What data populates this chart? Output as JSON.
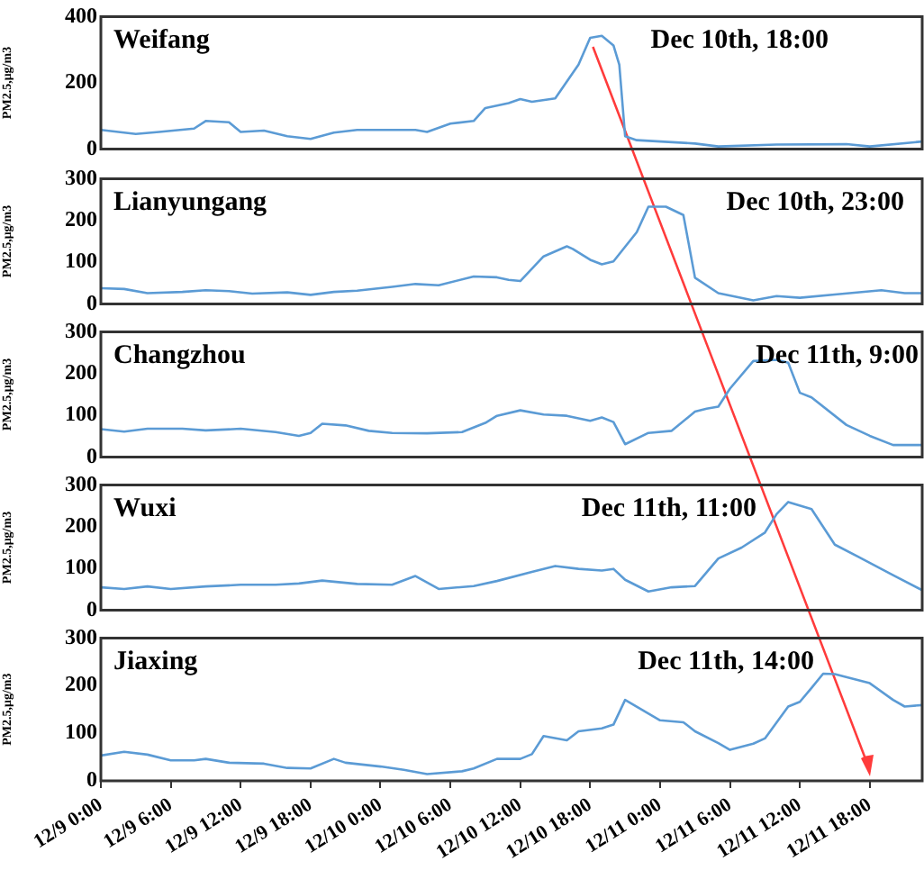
{
  "chart_data": [
    {
      "type": "line",
      "title": "Weifang",
      "ylabel": "PM2.5,μg/m3",
      "annotations": [
        "Dec 10th, 18:00"
      ],
      "tick_labels": "y",
      "marker": "none",
      "xlim": [
        "--12-09T00:00",
        "--12-11T22:30"
      ],
      "ylim": [
        0,
        400
      ],
      "yticks": [
        0,
        200,
        400
      ],
      "series": [
        {
          "color": "#5b9bd5",
          "x": [
            "--12-09T00:00",
            "--12-09T03:00",
            "--12-09T05:00",
            "--12-09T08:00",
            "--12-09T09:00",
            "--12-09T11:00",
            "--12-09T12:00",
            "--12-09T14:00",
            "--12-09T16:00",
            "--12-09T18:00",
            "--12-09T20:00",
            "--12-09T22:00",
            "--12-10T03:00",
            "--12-10T04:00",
            "--12-10T06:00",
            "--12-10T08:00",
            "--12-10T09:00",
            "--12-10T11:00",
            "--12-10T12:00",
            "--12-10T13:00",
            "--12-10T15:00",
            "--12-10T17:00",
            "--12-10T18:00",
            "--12-10T19:00",
            "--12-10T20:00",
            "--12-10T20:30",
            "--12-10T21:00",
            "--12-10T22:00",
            "--12-11T03:00",
            "--12-11T05:00",
            "--12-11T10:00",
            "--12-11T16:00",
            "--12-11T18:00",
            "--12-11T22:30"
          ],
          "values": [
            58,
            46,
            52,
            62,
            85,
            81,
            52,
            56,
            39,
            31,
            50,
            58,
            58,
            52,
            77,
            85,
            124,
            139,
            151,
            143,
            153,
            255,
            336,
            342,
            313,
            255,
            39,
            27,
            17,
            8,
            14,
            15,
            8,
            23
          ]
        }
      ]
    },
    {
      "type": "line",
      "title": "Lianyungang",
      "ylabel": "PM2.5,μg/m3",
      "annotations": [
        "Dec 10th, 23:00"
      ],
      "tick_labels": "y",
      "marker": "none",
      "xlim": [
        "--12-09T00:00",
        "--12-11T22:30"
      ],
      "ylim": [
        0,
        300
      ],
      "yticks": [
        0,
        100,
        200,
        300
      ],
      "series": [
        {
          "color": "#5b9bd5",
          "x": [
            "--12-09T00:00",
            "--12-09T02:00",
            "--12-09T04:00",
            "--12-09T07:00",
            "--12-09T09:00",
            "--12-09T11:00",
            "--12-09T13:00",
            "--12-09T16:00",
            "--12-09T18:00",
            "--12-09T20:00",
            "--12-09T22:00",
            "--12-10T01:00",
            "--12-10T03:00",
            "--12-10T05:00",
            "--12-10T08:00",
            "--12-10T10:00",
            "--12-10T11:00",
            "--12-10T12:00",
            "--12-10T14:00",
            "--12-10T16:00",
            "--12-10T16:30",
            "--12-10T18:00",
            "--12-10T19:00",
            "--12-10T20:00",
            "--12-10T22:00",
            "--12-10T23:00",
            "--12-11T00:30",
            "--12-11T02:00",
            "--12-11T03:00",
            "--12-11T05:00",
            "--12-11T08:00",
            "--12-11T10:00",
            "--12-11T12:00",
            "--12-11T15:00",
            "--12-11T19:00",
            "--12-11T21:00",
            "--12-11T22:30"
          ],
          "values": [
            38,
            36,
            26,
            29,
            33,
            31,
            25,
            28,
            22,
            29,
            32,
            41,
            48,
            45,
            66,
            64,
            58,
            55,
            114,
            138,
            132,
            106,
            95,
            102,
            172,
            233,
            233,
            213,
            63,
            26,
            9,
            19,
            15,
            23,
            33,
            26,
            26
          ]
        }
      ]
    },
    {
      "type": "line",
      "title": "Changzhou",
      "ylabel": "PM2.5,μg/m3",
      "annotations": [
        "Dec 11th, 9:00"
      ],
      "tick_labels": "y",
      "marker": "none",
      "xlim": [
        "--12-09T00:00",
        "--12-11T22:30"
      ],
      "ylim": [
        0,
        300
      ],
      "yticks": [
        0,
        100,
        200,
        300
      ],
      "series": [
        {
          "color": "#5b9bd5",
          "x": [
            "--12-09T00:00",
            "--12-09T02:00",
            "--12-09T04:00",
            "--12-09T07:00",
            "--12-09T09:00",
            "--12-09T12:00",
            "--12-09T15:00",
            "--12-09T17:00",
            "--12-09T18:00",
            "--12-09T19:00",
            "--12-09T21:00",
            "--12-09T23:00",
            "--12-10T01:00",
            "--12-10T04:00",
            "--12-10T07:00",
            "--12-10T09:00",
            "--12-10T10:00",
            "--12-10T12:00",
            "--12-10T14:00",
            "--12-10T16:00",
            "--12-10T18:00",
            "--12-10T19:00",
            "--12-10T20:00",
            "--12-10T21:00",
            "--12-10T23:00",
            "--12-11T01:00",
            "--12-11T03:00",
            "--12-11T04:00",
            "--12-11T05:00",
            "--12-11T06:00",
            "--12-11T08:00",
            "--12-11T10:00",
            "--12-11T11:00",
            "--12-11T12:00",
            "--12-11T13:00",
            "--12-11T16:00",
            "--12-11T18:00",
            "--12-11T20:00",
            "--12-11T22:30"
          ],
          "values": [
            67,
            61,
            68,
            68,
            64,
            68,
            60,
            51,
            58,
            80,
            76,
            63,
            58,
            57,
            60,
            82,
            99,
            112,
            102,
            99,
            87,
            95,
            84,
            31,
            58,
            63,
            109,
            116,
            121,
            164,
            230,
            233,
            226,
            154,
            143,
            77,
            51,
            29,
            29
          ]
        }
      ]
    },
    {
      "type": "line",
      "title": "Wuxi",
      "ylabel": "PM2.5,μg/m3",
      "annotations": [
        "Dec 11th, 11:00"
      ],
      "tick_labels": "y",
      "marker": "none",
      "xlim": [
        "--12-09T00:00",
        "--12-11T22:30"
      ],
      "ylim": [
        0,
        300
      ],
      "yticks": [
        0,
        100,
        200,
        300
      ],
      "series": [
        {
          "color": "#5b9bd5",
          "x": [
            "--12-09T00:00",
            "--12-09T02:00",
            "--12-09T04:00",
            "--12-09T06:00",
            "--12-09T09:00",
            "--12-09T12:00",
            "--12-09T15:00",
            "--12-09T17:00",
            "--12-09T19:00",
            "--12-09T22:00",
            "--12-10T01:00",
            "--12-10T03:00",
            "--12-10T05:00",
            "--12-10T08:00",
            "--12-10T10:00",
            "--12-10T13:00",
            "--12-10T15:00",
            "--12-10T17:00",
            "--12-10T19:00",
            "--12-10T20:00",
            "--12-10T21:00",
            "--12-10T23:00",
            "--12-11T01:00",
            "--12-11T03:00",
            "--12-11T05:00",
            "--12-11T07:00",
            "--12-11T09:00",
            "--12-11T10:00",
            "--12-11T11:00",
            "--12-11T13:00",
            "--12-11T15:00",
            "--12-11T17:00",
            "--12-11T20:00",
            "--12-11T22:30"
          ],
          "values": [
            55,
            51,
            57,
            51,
            57,
            61,
            61,
            64,
            71,
            63,
            61,
            82,
            51,
            58,
            70,
            92,
            106,
            99,
            95,
            99,
            73,
            45,
            55,
            58,
            124,
            150,
            186,
            230,
            259,
            242,
            157,
            128,
            84,
            48
          ]
        }
      ]
    },
    {
      "type": "line",
      "title": "Jiaxing",
      "ylabel": "PM2.5,μg/m3",
      "annotations": [
        "Dec 11th, 14:00"
      ],
      "marker": "none",
      "xlim": [
        "--12-09T00:00",
        "--12-11T22:30"
      ],
      "xticks": [
        {
          "value": "--12-09T00:00",
          "label": "12/9 0:00"
        },
        {
          "value": "--12-09T06:00",
          "label": "12/9 6:00"
        },
        {
          "value": "--12-09T12:00",
          "label": "12/9 12:00"
        },
        {
          "value": "--12-09T18:00",
          "label": "12/9 18:00"
        },
        {
          "value": "--12-10T00:00",
          "label": "12/10 0:00"
        },
        {
          "value": "--12-10T06:00",
          "label": "12/10 6:00"
        },
        {
          "value": "--12-10T12:00",
          "label": "12/10 12:00"
        },
        {
          "value": "--12-10T18:00",
          "label": "12/10 18:00"
        },
        {
          "value": "--12-11T00:00",
          "label": "12/11 0:00"
        },
        {
          "value": "--12-11T06:00",
          "label": "12/11 6:00"
        },
        {
          "value": "--12-11T12:00",
          "label": "12/11 12:00"
        },
        {
          "value": "--12-11T18:00",
          "label": "12/11 18:00"
        }
      ],
      "ylim": [
        0,
        300
      ],
      "yticks": [
        0,
        100,
        200,
        300
      ],
      "series": [
        {
          "color": "#5b9bd5",
          "x": [
            "--12-09T00:00",
            "--12-09T02:00",
            "--12-09T04:00",
            "--12-09T06:00",
            "--12-09T08:00",
            "--12-09T09:00",
            "--12-09T11:00",
            "--12-09T14:00",
            "--12-09T16:00",
            "--12-09T18:00",
            "--12-09T20:00",
            "--12-09T21:00",
            "--12-10T00:00",
            "--12-10T02:00",
            "--12-10T04:00",
            "--12-10T07:00",
            "--12-10T08:00",
            "--12-10T10:00",
            "--12-10T12:00",
            "--12-10T13:00",
            "--12-10T14:00",
            "--12-10T16:00",
            "--12-10T17:00",
            "--12-10T19:00",
            "--12-10T20:00",
            "--12-10T21:00",
            "--12-11T00:00",
            "--12-11T02:00",
            "--12-11T03:00",
            "--12-11T05:00",
            "--12-11T06:00",
            "--12-11T08:00",
            "--12-11T09:00",
            "--12-11T11:00",
            "--12-11T12:00",
            "--12-11T13:00",
            "--12-11T14:00",
            "--12-11T15:00",
            "--12-11T18:00",
            "--12-11T20:00",
            "--12-11T21:00",
            "--12-11T22:30"
          ],
          "values": [
            53,
            61,
            55,
            43,
            43,
            46,
            38,
            36,
            27,
            26,
            46,
            38,
            30,
            23,
            14,
            20,
            26,
            46,
            46,
            56,
            94,
            85,
            104,
            110,
            118,
            170,
            127,
            123,
            104,
            79,
            65,
            78,
            89,
            156,
            166,
            195,
            225,
            224,
            205,
            170,
            156,
            159
          ]
        }
      ]
    }
  ]
}
